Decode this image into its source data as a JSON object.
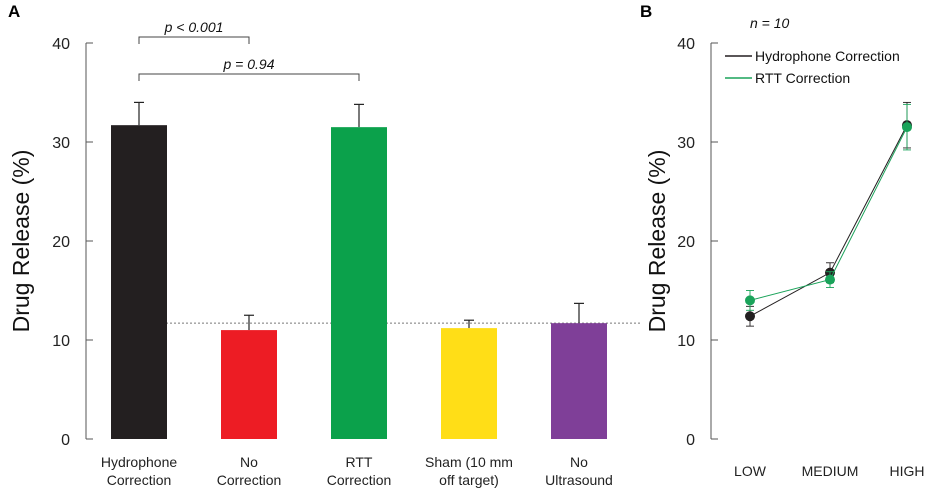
{
  "chart_data": [
    {
      "panel": "A",
      "type": "bar",
      "ylabel": "Drug Release (%)",
      "ylim": [
        0,
        40
      ],
      "yticks": [
        0,
        10,
        20,
        30,
        40
      ],
      "categories": [
        [
          "Hydrophone",
          "Correction"
        ],
        [
          "No",
          "Correction"
        ],
        [
          "RTT",
          "Correction"
        ],
        [
          "Sham (10 mm",
          "off target)"
        ],
        [
          "No",
          "Ultrasound"
        ]
      ],
      "values": [
        31.7,
        11.0,
        31.5,
        11.2,
        11.7
      ],
      "errors": [
        2.3,
        1.5,
        2.3,
        0.8,
        2.0
      ],
      "colors": [
        "#231f20",
        "#ed1c24",
        "#0ba14b",
        "#ffde17",
        "#7f3f98"
      ],
      "reference_line": 11.7,
      "annotations": [
        {
          "text": "p < 0.001",
          "from": 0,
          "to": 1
        },
        {
          "text": "p = 0.94",
          "from": 0,
          "to": 2
        }
      ]
    },
    {
      "panel": "B",
      "type": "line",
      "ylabel": "Drug Release (%)",
      "ylim": [
        0,
        40
      ],
      "yticks": [
        0,
        10,
        20,
        30,
        40
      ],
      "categories": [
        "LOW",
        "MEDIUM",
        "HIGH"
      ],
      "annotation": "n = 10",
      "series": [
        {
          "name": "Hydrophone Correction",
          "color": "#231f20",
          "values": [
            12.4,
            16.8,
            31.7
          ],
          "errors": [
            1.0,
            1.0,
            2.3
          ]
        },
        {
          "name": "RTT Correction",
          "color": "#1aa35a",
          "values": [
            14.0,
            16.1,
            31.5
          ],
          "errors": [
            1.0,
            0.8,
            2.3
          ]
        }
      ]
    }
  ]
}
